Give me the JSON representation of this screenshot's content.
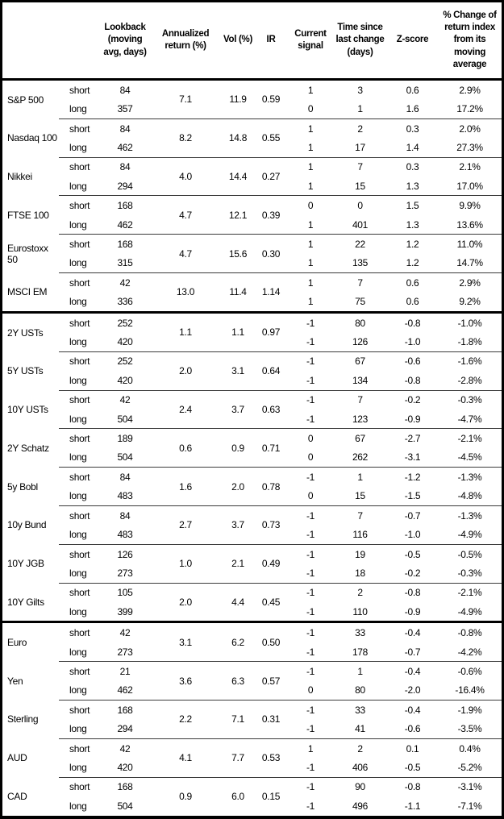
{
  "table": {
    "headers": {
      "instrument": "",
      "period": "",
      "lookback": "Lookback\n(moving\navg, days)",
      "ann_return": "Annualized\nreturn (%)",
      "vol": "Vol (%)",
      "ir": "IR",
      "signal": "Current\nsignal",
      "time": "Time since\nlast change\n(days)",
      "z": "Z-score",
      "pct": "% Change of\nreturn index\nfrom its\nmoving\naverage"
    },
    "sections": [
      {
        "groups": [
          {
            "name": "S&P 500",
            "ann_return": "7.1",
            "vol": "11.9",
            "ir": "0.59",
            "rows": [
              {
                "period": "short",
                "lookback": "84",
                "signal": "1",
                "time": "3",
                "z": "0.6",
                "pct": "2.9%"
              },
              {
                "period": "long",
                "lookback": "357",
                "signal": "0",
                "time": "1",
                "z": "1.6",
                "pct": "17.2%"
              }
            ]
          },
          {
            "name": "Nasdaq 100",
            "ann_return": "8.2",
            "vol": "14.8",
            "ir": "0.55",
            "rows": [
              {
                "period": "short",
                "lookback": "84",
                "signal": "1",
                "time": "2",
                "z": "0.3",
                "pct": "2.0%"
              },
              {
                "period": "long",
                "lookback": "462",
                "signal": "1",
                "time": "17",
                "z": "1.4",
                "pct": "27.3%"
              }
            ]
          },
          {
            "name": "Nikkei",
            "ann_return": "4.0",
            "vol": "14.4",
            "ir": "0.27",
            "rows": [
              {
                "period": "short",
                "lookback": "84",
                "signal": "1",
                "time": "7",
                "z": "0.3",
                "pct": "2.1%"
              },
              {
                "period": "long",
                "lookback": "294",
                "signal": "1",
                "time": "15",
                "z": "1.3",
                "pct": "17.0%"
              }
            ]
          },
          {
            "name": "FTSE 100",
            "ann_return": "4.7",
            "vol": "12.1",
            "ir": "0.39",
            "rows": [
              {
                "period": "short",
                "lookback": "168",
                "signal": "0",
                "time": "0",
                "z": "1.5",
                "pct": "9.9%"
              },
              {
                "period": "long",
                "lookback": "462",
                "signal": "1",
                "time": "401",
                "z": "1.3",
                "pct": "13.6%"
              }
            ]
          },
          {
            "name": "Eurostoxx 50",
            "ann_return": "4.7",
            "vol": "15.6",
            "ir": "0.30",
            "rows": [
              {
                "period": "short",
                "lookback": "168",
                "signal": "1",
                "time": "22",
                "z": "1.2",
                "pct": "11.0%"
              },
              {
                "period": "long",
                "lookback": "315",
                "signal": "1",
                "time": "135",
                "z": "1.2",
                "pct": "14.7%"
              }
            ]
          },
          {
            "name": "MSCI EM",
            "ann_return": "13.0",
            "vol": "11.4",
            "ir": "1.14",
            "rows": [
              {
                "period": "short",
                "lookback": "42",
                "signal": "1",
                "time": "7",
                "z": "0.6",
                "pct": "2.9%"
              },
              {
                "period": "long",
                "lookback": "336",
                "signal": "1",
                "time": "75",
                "z": "0.6",
                "pct": "9.2%"
              }
            ]
          }
        ]
      },
      {
        "groups": [
          {
            "name": "2Y USTs",
            "ann_return": "1.1",
            "vol": "1.1",
            "ir": "0.97",
            "rows": [
              {
                "period": "short",
                "lookback": "252",
                "signal": "-1",
                "time": "80",
                "z": "-0.8",
                "pct": "-1.0%"
              },
              {
                "period": "long",
                "lookback": "420",
                "signal": "-1",
                "time": "126",
                "z": "-1.0",
                "pct": "-1.8%"
              }
            ]
          },
          {
            "name": "5Y USTs",
            "ann_return": "2.0",
            "vol": "3.1",
            "ir": "0.64",
            "rows": [
              {
                "period": "short",
                "lookback": "252",
                "signal": "-1",
                "time": "67",
                "z": "-0.6",
                "pct": "-1.6%"
              },
              {
                "period": "long",
                "lookback": "420",
                "signal": "-1",
                "time": "134",
                "z": "-0.8",
                "pct": "-2.8%"
              }
            ]
          },
          {
            "name": "10Y USTs",
            "ann_return": "2.4",
            "vol": "3.7",
            "ir": "0.63",
            "rows": [
              {
                "period": "short",
                "lookback": "42",
                "signal": "-1",
                "time": "7",
                "z": "-0.2",
                "pct": "-0.3%"
              },
              {
                "period": "long",
                "lookback": "504",
                "signal": "-1",
                "time": "123",
                "z": "-0.9",
                "pct": "-4.7%"
              }
            ]
          },
          {
            "name": "2Y Schatz",
            "ann_return": "0.6",
            "vol": "0.9",
            "ir": "0.71",
            "rows": [
              {
                "period": "short",
                "lookback": "189",
                "signal": "0",
                "time": "67",
                "z": "-2.7",
                "pct": "-2.1%"
              },
              {
                "period": "long",
                "lookback": "504",
                "signal": "0",
                "time": "262",
                "z": "-3.1",
                "pct": "-4.5%"
              }
            ]
          },
          {
            "name": "5y Bobl",
            "ann_return": "1.6",
            "vol": "2.0",
            "ir": "0.78",
            "rows": [
              {
                "period": "short",
                "lookback": "84",
                "signal": "-1",
                "time": "1",
                "z": "-1.2",
                "pct": "-1.3%"
              },
              {
                "period": "long",
                "lookback": "483",
                "signal": "0",
                "time": "15",
                "z": "-1.5",
                "pct": "-4.8%"
              }
            ]
          },
          {
            "name": "10y Bund",
            "ann_return": "2.7",
            "vol": "3.7",
            "ir": "0.73",
            "rows": [
              {
                "period": "short",
                "lookback": "84",
                "signal": "-1",
                "time": "7",
                "z": "-0.7",
                "pct": "-1.3%"
              },
              {
                "period": "long",
                "lookback": "483",
                "signal": "-1",
                "time": "116",
                "z": "-1.0",
                "pct": "-4.9%"
              }
            ]
          },
          {
            "name": "10Y JGB",
            "ann_return": "1.0",
            "vol": "2.1",
            "ir": "0.49",
            "rows": [
              {
                "period": "short",
                "lookback": "126",
                "signal": "-1",
                "time": "19",
                "z": "-0.5",
                "pct": "-0.5%"
              },
              {
                "period": "long",
                "lookback": "273",
                "signal": "-1",
                "time": "18",
                "z": "-0.2",
                "pct": "-0.3%"
              }
            ]
          },
          {
            "name": "10Y Gilts",
            "ann_return": "2.0",
            "vol": "4.4",
            "ir": "0.45",
            "rows": [
              {
                "period": "short",
                "lookback": "105",
                "signal": "-1",
                "time": "2",
                "z": "-0.8",
                "pct": "-2.1%"
              },
              {
                "period": "long",
                "lookback": "399",
                "signal": "-1",
                "time": "110",
                "z": "-0.9",
                "pct": "-4.9%"
              }
            ]
          }
        ]
      },
      {
        "groups": [
          {
            "name": "Euro",
            "ann_return": "3.1",
            "vol": "6.2",
            "ir": "0.50",
            "rows": [
              {
                "period": "short",
                "lookback": "42",
                "signal": "-1",
                "time": "33",
                "z": "-0.4",
                "pct": "-0.8%"
              },
              {
                "period": "long",
                "lookback": "273",
                "signal": "-1",
                "time": "178",
                "z": "-0.7",
                "pct": "-4.2%"
              }
            ]
          },
          {
            "name": "Yen",
            "ann_return": "3.6",
            "vol": "6.3",
            "ir": "0.57",
            "rows": [
              {
                "period": "short",
                "lookback": "21",
                "signal": "-1",
                "time": "1",
                "z": "-0.4",
                "pct": "-0.6%"
              },
              {
                "period": "long",
                "lookback": "462",
                "signal": "0",
                "time": "80",
                "z": "-2.0",
                "pct": "-16.4%"
              }
            ]
          },
          {
            "name": "Sterling",
            "ann_return": "2.2",
            "vol": "7.1",
            "ir": "0.31",
            "rows": [
              {
                "period": "short",
                "lookback": "168",
                "signal": "-1",
                "time": "33",
                "z": "-0.4",
                "pct": "-1.9%"
              },
              {
                "period": "long",
                "lookback": "294",
                "signal": "-1",
                "time": "41",
                "z": "-0.6",
                "pct": "-3.5%"
              }
            ]
          },
          {
            "name": "AUD",
            "ann_return": "4.1",
            "vol": "7.7",
            "ir": "0.53",
            "rows": [
              {
                "period": "short",
                "lookback": "42",
                "signal": "1",
                "time": "2",
                "z": "0.1",
                "pct": "0.4%"
              },
              {
                "period": "long",
                "lookback": "420",
                "signal": "-1",
                "time": "406",
                "z": "-0.5",
                "pct": "-5.2%"
              }
            ]
          },
          {
            "name": "CAD",
            "ann_return": "0.9",
            "vol": "6.0",
            "ir": "0.15",
            "rows": [
              {
                "period": "short",
                "lookback": "168",
                "signal": "-1",
                "time": "90",
                "z": "-0.8",
                "pct": "-3.1%"
              },
              {
                "period": "long",
                "lookback": "504",
                "signal": "-1",
                "time": "496",
                "z": "-1.1",
                "pct": "-7.1%"
              }
            ]
          }
        ]
      }
    ]
  }
}
